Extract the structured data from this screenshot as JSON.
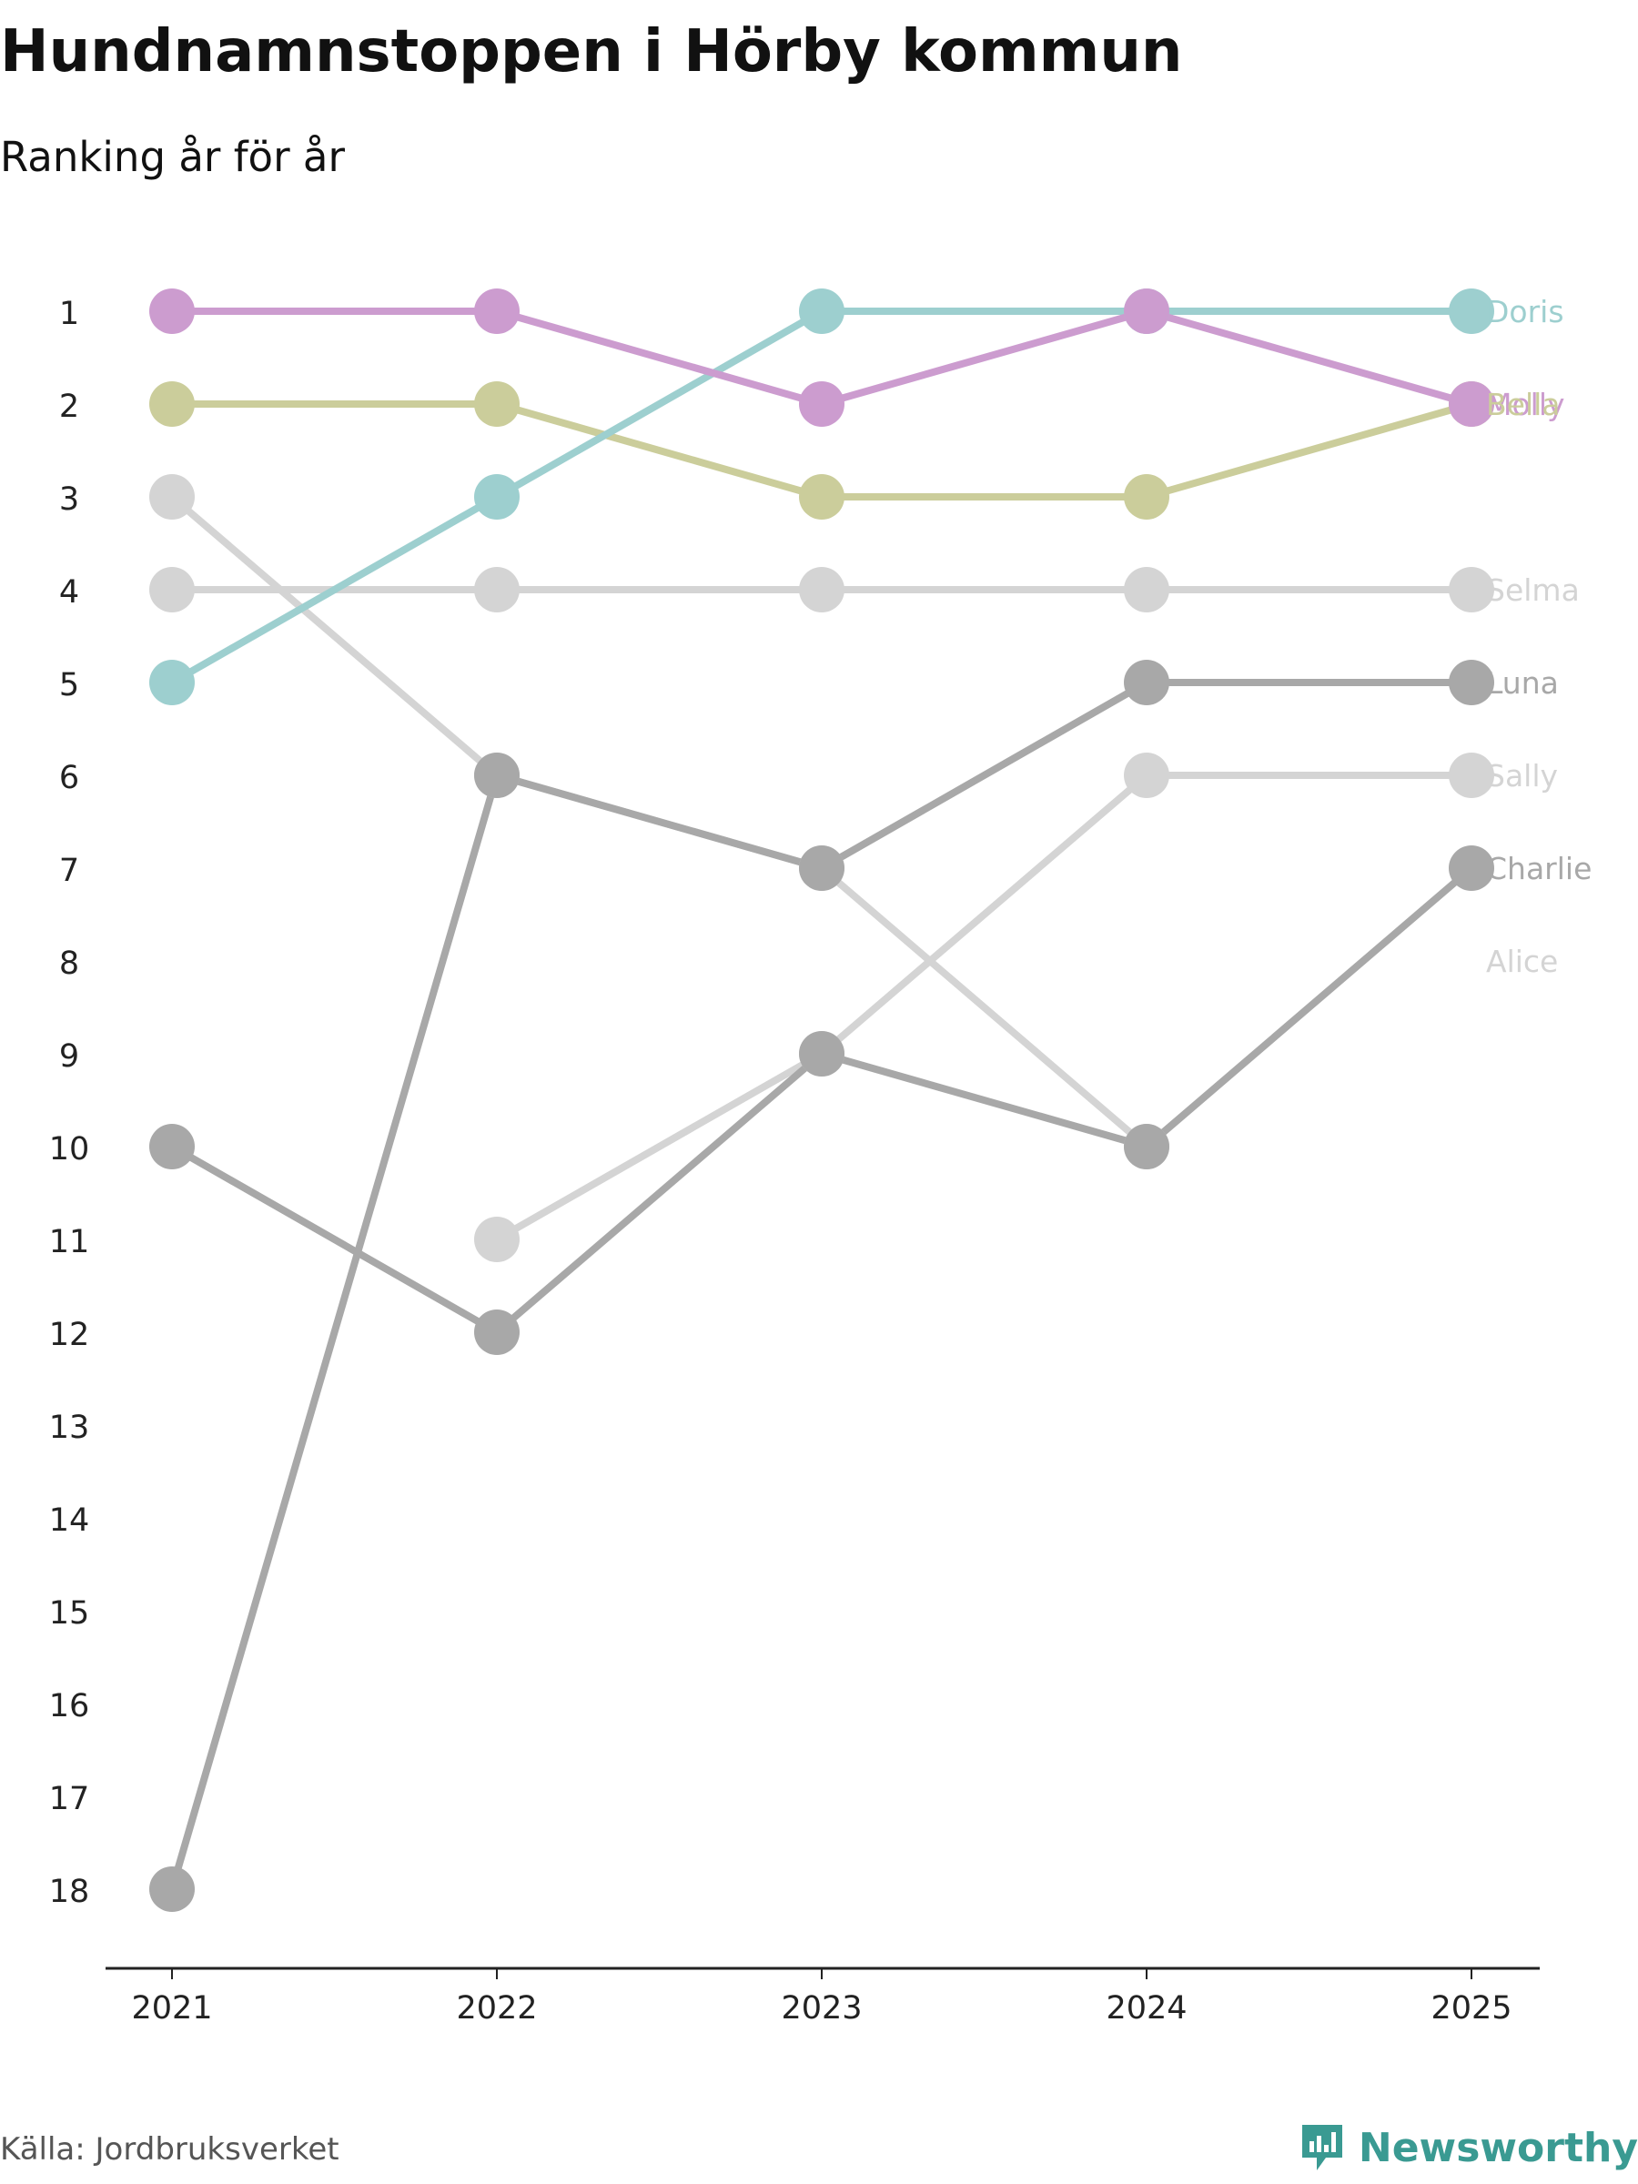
{
  "title": "Hundnamnstoppen i Hörby kommun",
  "subtitle": "Ranking år för år",
  "source": "Källa: Jordbruksverket",
  "brand": "Newsworthy",
  "brand_icon": "newsworthy-logo-icon",
  "colors": {
    "Doris": "#9dcfcf",
    "Molly": "#cc9ccf",
    "Bella": "#cbcd9b",
    "light_gray": "#d4d4d4",
    "dark_gray": "#a8a8a8",
    "brand": "#3a9a92",
    "axis": "#222222",
    "tick_text": "#222222"
  },
  "chart_data": {
    "type": "line",
    "subtype": "bump",
    "title": "Hundnamnstoppen i Hörby kommun",
    "subtitle": "Ranking år för år",
    "x": [
      "2021",
      "2022",
      "2023",
      "2024",
      "2025"
    ],
    "y_ticks": [
      1,
      2,
      3,
      4,
      5,
      6,
      7,
      8,
      9,
      10,
      11,
      12,
      13,
      14,
      15,
      16,
      17,
      18
    ],
    "ylim": [
      1,
      18
    ],
    "y_reversed": true,
    "grid": false,
    "xlabel": "",
    "ylabel": "",
    "series": [
      {
        "name": "Doris",
        "color": "#9dcfcf",
        "label": "Doris",
        "ranks": [
          5,
          3,
          1,
          1,
          1
        ]
      },
      {
        "name": "Molly",
        "color": "#cc9ccf",
        "label": "Molly",
        "ranks": [
          1,
          1,
          2,
          1,
          2
        ]
      },
      {
        "name": "Bella",
        "color": "#cbcd9b",
        "label": "Bella",
        "ranks": [
          2,
          2,
          3,
          3,
          2
        ]
      },
      {
        "name": "Selma",
        "color": "#d4d4d4",
        "label": "Selma",
        "ranks": [
          4,
          4,
          4,
          4,
          4
        ]
      },
      {
        "name": "Luna",
        "color": "#a8a8a8",
        "label": "Luna",
        "ranks": [
          18,
          6,
          7,
          5,
          5
        ]
      },
      {
        "name": "Sally",
        "color": "#d4d4d4",
        "label": "Sally",
        "ranks": [
          null,
          11,
          9,
          6,
          6
        ]
      },
      {
        "name": "Charlie",
        "color": "#a8a8a8",
        "label": "Charlie",
        "ranks": [
          10,
          12,
          9,
          10,
          7
        ]
      },
      {
        "name": "Alice",
        "color": "#d4d4d4",
        "label": "Alice",
        "ranks": [
          3,
          6,
          7,
          10,
          null
        ],
        "label_rank": 8
      }
    ]
  }
}
